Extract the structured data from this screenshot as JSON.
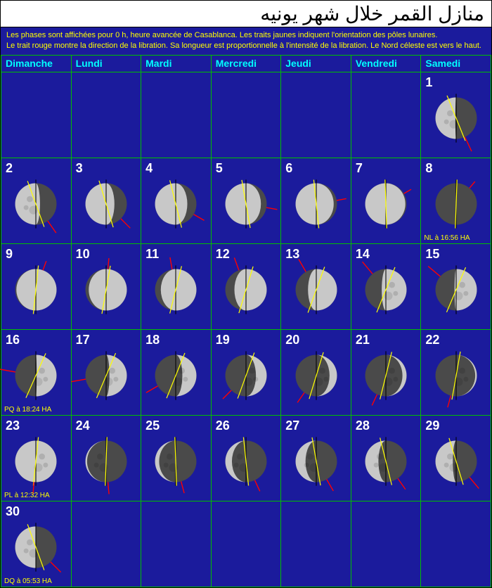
{
  "title": "منازل القمر خلال شهر يونيه",
  "info_line1": "Les phases sont affichées pour 0 h, heure avancée de Casablanca.   Les traits jaunes indiquent l'orientation des pôles lunaires.",
  "info_line2": "Le trait rouge montre la direction de la libration. Sa longueur est proportionnelle à l'intensité de la libration.     Le Nord céleste est vers le haut.",
  "colors": {
    "bg": "#1b1b9c",
    "grid": "#00c000",
    "header_text": "#00ffff",
    "info_text": "#ffff00",
    "caption_text": "#ffff00",
    "moon_light": "#c8c8c8",
    "moon_dark": "#4a4a4a",
    "pole_axis": "#ffff00",
    "libration": "#ff0000",
    "north_axis": "#000000"
  },
  "weekdays": [
    "Dimanche",
    "Lundi",
    "Mardi",
    "Mercredi",
    "Jeudi",
    "Vendredi",
    "Samedi"
  ],
  "moon_render": {
    "radius": 34
  },
  "days": [
    {
      "day": "",
      "phase": null
    },
    {
      "day": "",
      "phase": null
    },
    {
      "day": "",
      "phase": null
    },
    {
      "day": "",
      "phase": null
    },
    {
      "day": "",
      "phase": null
    },
    {
      "day": "",
      "phase": null
    },
    {
      "day": "1",
      "phase": -0.52,
      "pole_angle": -22,
      "lib_angle": 155,
      "lib_len": 26,
      "caption": ""
    },
    {
      "day": "2",
      "phase": -0.4,
      "pole_angle": -20,
      "lib_angle": 145,
      "lib_len": 24,
      "caption": ""
    },
    {
      "day": "3",
      "phase": -0.3,
      "pole_angle": -17,
      "lib_angle": 135,
      "lib_len": 22,
      "caption": ""
    },
    {
      "day": "4",
      "phase": -0.22,
      "pole_angle": -14,
      "lib_angle": 120,
      "lib_len": 20,
      "caption": ""
    },
    {
      "day": "5",
      "phase": -0.14,
      "pole_angle": -10,
      "lib_angle": 100,
      "lib_len": 18,
      "caption": ""
    },
    {
      "day": "6",
      "phase": -0.08,
      "pole_angle": -6,
      "lib_angle": 80,
      "lib_len": 16,
      "caption": ""
    },
    {
      "day": "7",
      "phase": -0.03,
      "pole_angle": -2,
      "lib_angle": 60,
      "lib_len": 14,
      "caption": ""
    },
    {
      "day": "8",
      "phase": 0.0,
      "pole_angle": 2,
      "lib_angle": 40,
      "lib_len": 14,
      "caption": "NL à 16:56 HA"
    },
    {
      "day": "9",
      "phase": 0.03,
      "pole_angle": 6,
      "lib_angle": 20,
      "lib_len": 16,
      "caption": ""
    },
    {
      "day": "10",
      "phase": 0.08,
      "pole_angle": 10,
      "lib_angle": 5,
      "lib_len": 18,
      "caption": ""
    },
    {
      "day": "11",
      "phase": 0.14,
      "pole_angle": 14,
      "lib_angle": -10,
      "lib_len": 20,
      "caption": ""
    },
    {
      "day": "12",
      "phase": 0.22,
      "pole_angle": 17,
      "lib_angle": -20,
      "lib_len": 22,
      "caption": ""
    },
    {
      "day": "13",
      "phase": 0.3,
      "pole_angle": 20,
      "lib_angle": -30,
      "lib_len": 24,
      "caption": ""
    },
    {
      "day": "14",
      "phase": 0.4,
      "pole_angle": 22,
      "lib_angle": -40,
      "lib_len": 26,
      "caption": ""
    },
    {
      "day": "15",
      "phase": 0.46,
      "pole_angle": 23,
      "lib_angle": -50,
      "lib_len": 26,
      "caption": ""
    },
    {
      "day": "16",
      "phase": 0.52,
      "pole_angle": 24,
      "lib_angle": -80,
      "lib_len": 26,
      "caption": "PQ à 18:24 HA"
    },
    {
      "day": "17",
      "phase": 0.58,
      "pole_angle": 23,
      "lib_angle": -100,
      "lib_len": 24,
      "caption": ""
    },
    {
      "day": "18",
      "phase": 0.66,
      "pole_angle": 22,
      "lib_angle": -120,
      "lib_len": 22,
      "caption": ""
    },
    {
      "day": "19",
      "phase": 0.74,
      "pole_angle": 20,
      "lib_angle": -135,
      "lib_len": 20,
      "caption": ""
    },
    {
      "day": "20",
      "phase": 0.82,
      "pole_angle": 17,
      "lib_angle": -145,
      "lib_len": 20,
      "caption": ""
    },
    {
      "day": "21",
      "phase": 0.9,
      "pole_angle": 14,
      "lib_angle": -155,
      "lib_len": 20,
      "caption": ""
    },
    {
      "day": "22",
      "phase": 0.96,
      "pole_angle": 10,
      "lib_angle": -165,
      "lib_len": 20,
      "caption": ""
    },
    {
      "day": "23",
      "phase": 1.0,
      "pole_angle": 6,
      "lib_angle": -175,
      "lib_len": 20,
      "caption": "PL à 12:32 HA"
    },
    {
      "day": "24",
      "phase": -0.96,
      "pole_angle": 2,
      "lib_angle": 175,
      "lib_len": 20,
      "caption": ""
    },
    {
      "day": "25",
      "phase": -0.9,
      "pole_angle": -2,
      "lib_angle": 165,
      "lib_len": 20,
      "caption": ""
    },
    {
      "day": "26",
      "phase": -0.84,
      "pole_angle": -6,
      "lib_angle": 155,
      "lib_len": 20,
      "caption": ""
    },
    {
      "day": "27",
      "phase": -0.76,
      "pole_angle": -10,
      "lib_angle": 150,
      "lib_len": 22,
      "caption": ""
    },
    {
      "day": "28",
      "phase": -0.68,
      "pole_angle": -14,
      "lib_angle": 145,
      "lib_len": 22,
      "caption": ""
    },
    {
      "day": "29",
      "phase": -0.58,
      "pole_angle": -17,
      "lib_angle": 140,
      "lib_len": 24,
      "caption": ""
    },
    {
      "day": "30",
      "phase": -0.5,
      "pole_angle": -20,
      "lib_angle": 135,
      "lib_len": 24,
      "caption": "DQ à 05:53 HA"
    },
    {
      "day": "",
      "phase": null
    },
    {
      "day": "",
      "phase": null
    },
    {
      "day": "",
      "phase": null
    },
    {
      "day": "",
      "phase": null
    },
    {
      "day": "",
      "phase": null
    },
    {
      "day": "",
      "phase": null
    }
  ]
}
